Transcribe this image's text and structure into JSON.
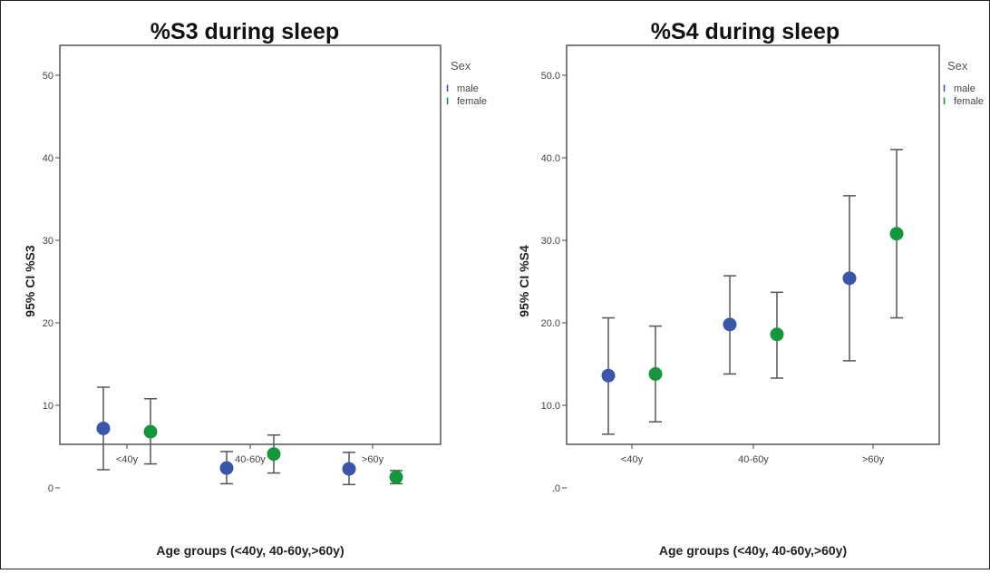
{
  "chart_data": [
    {
      "type": "scatter",
      "subtype": "error-bar (mean with 95% CI)",
      "title": "%S3 during sleep",
      "xlabel": "Age groups (<40y, 40-60y,>60y)",
      "ylabel": "95% CI %S3",
      "categories": [
        "<40y",
        "40-60y",
        ">60y"
      ],
      "yticks": [
        "0",
        "10",
        "20",
        "30",
        "40",
        "50"
      ],
      "ytick_values": [
        0,
        10,
        20,
        30,
        40,
        50
      ],
      "ylim": [
        -3.5,
        53.5
      ],
      "grid": false,
      "legend": {
        "title": "Sex",
        "position": "top-right"
      },
      "series": [
        {
          "name": "male",
          "color": "#3a56ab",
          "mean": [
            7.2,
            2.4,
            2.3
          ],
          "lower": [
            2.2,
            0.5,
            0.4
          ],
          "upper": [
            12.2,
            4.4,
            4.3
          ]
        },
        {
          "name": "female",
          "color": "#13963c",
          "mean": [
            6.8,
            4.1,
            1.3
          ],
          "lower": [
            2.9,
            1.8,
            0.5
          ],
          "upper": [
            10.8,
            6.4,
            2.1
          ]
        }
      ]
    },
    {
      "type": "scatter",
      "subtype": "error-bar (mean with 95% CI)",
      "title": "%S4 during sleep",
      "xlabel": "Age groups (<40y, 40-60y,>60y)",
      "ylabel": "95% CI %S4",
      "categories": [
        "<40y",
        "40-60y",
        ">60y"
      ],
      "yticks": [
        ".0",
        "10.0",
        "20.0",
        "30.0",
        "40.0",
        "50.0"
      ],
      "ytick_values": [
        0,
        10,
        20,
        30,
        40,
        50
      ],
      "ylim": [
        -3.5,
        53.5
      ],
      "grid": false,
      "legend": {
        "title": "Sex",
        "position": "top-right"
      },
      "series": [
        {
          "name": "male",
          "color": "#3a56ab",
          "mean": [
            13.6,
            19.8,
            25.4
          ],
          "lower": [
            6.5,
            13.8,
            15.4
          ],
          "upper": [
            20.6,
            25.7,
            35.4
          ]
        },
        {
          "name": "female",
          "color": "#13963c",
          "mean": [
            13.8,
            18.6,
            30.8
          ],
          "lower": [
            8.0,
            13.3,
            20.6
          ],
          "upper": [
            19.6,
            23.7,
            41.0
          ]
        }
      ]
    }
  ]
}
